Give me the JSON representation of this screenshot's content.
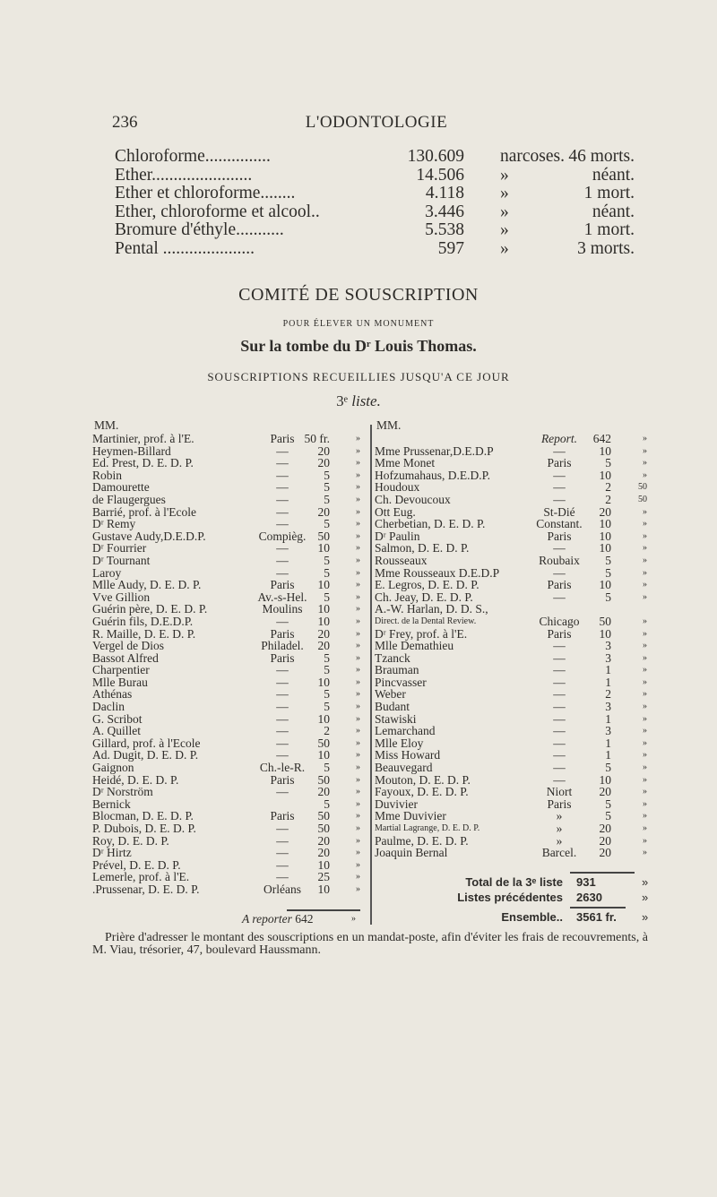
{
  "header": {
    "page_number": "236",
    "running_title": "L'ODONTOLOGIE"
  },
  "stats": [
    {
      "name": "Chloroforme...............",
      "count": "130.609",
      "sep": "narcoses.",
      "result": "46 morts."
    },
    {
      "name": "Ether.......................",
      "count": "14.506",
      "sep": "»",
      "result": "néant."
    },
    {
      "name": "Ether et chloroforme........",
      "count": "4.118",
      "sep": "»",
      "result": "1 mort."
    },
    {
      "name": "Ether, chloroforme et alcool..",
      "count": "3.446",
      "sep": "»",
      "result": "néant."
    },
    {
      "name": "Bromure d'éthyle...........",
      "count": "5.538",
      "sep": "»",
      "result": "1 mort."
    },
    {
      "name": "Pental .....................",
      "count": "597",
      "sep": "»",
      "result": "3 morts."
    }
  ],
  "committee": {
    "title": "COMITÉ DE SOUSCRIPTION",
    "subtitle": "POUR ÉLEVER UN MONUMENT",
    "dedication": "Sur la tombe du Dʳ Louis Thomas.",
    "collected": "SOUSCRIPTIONS RECUEILLIES JUSQU'A CE JOUR",
    "list_number": "3ᵉ",
    "list_label": "liste."
  },
  "left_column": {
    "header": "MM.",
    "rows": [
      [
        "Martinier, prof. à l'E.",
        "Paris",
        "50 fr.",
        "»"
      ],
      [
        "Heymen-Billard",
        "—",
        "20",
        "»"
      ],
      [
        "Ed. Prest, D. E. D. P.",
        "—",
        "20",
        "»"
      ],
      [
        "Robin",
        "—",
        "5",
        "»"
      ],
      [
        "Damourette",
        "—",
        "5",
        "»"
      ],
      [
        "de Flaugergues",
        "—",
        "5",
        "»"
      ],
      [
        "Barrié, prof. à l'Ecole",
        "—",
        "20",
        "»"
      ],
      [
        "Dʳ Remy",
        "—",
        "5",
        "»"
      ],
      [
        "Gustave Audy,D.E.D.P.",
        "Compièg.",
        "50",
        "»"
      ],
      [
        "Dʳ Fourrier",
        "—",
        "10",
        "»"
      ],
      [
        "Dʳ Tournant",
        "—",
        "5",
        "»"
      ],
      [
        "Laroy",
        "—",
        "5",
        "»"
      ],
      [
        "Mlle Audy, D. E. D. P.",
        "Paris",
        "10",
        "»"
      ],
      [
        "Vve Gillion",
        "Av.-s-Hel.",
        "5",
        "»"
      ],
      [
        "Guérin père, D. E. D. P.",
        "Moulins",
        "10",
        "»"
      ],
      [
        "Guérin fils, D.E.D.P.",
        "—",
        "10",
        "»"
      ],
      [
        "R. Maille, D. E. D. P.",
        "Paris",
        "20",
        "»"
      ],
      [
        "Vergel de Dios",
        "Philadel.",
        "20",
        "»"
      ],
      [
        "Bassot Alfred",
        "Paris",
        "5",
        "»"
      ],
      [
        "Charpentier",
        "—",
        "5",
        "»"
      ],
      [
        "Mlle Burau",
        "—",
        "10",
        "»"
      ],
      [
        "Athénas",
        "—",
        "5",
        "»"
      ],
      [
        "Daclin",
        "—",
        "5",
        "»"
      ],
      [
        "G. Scribot",
        "—",
        "10",
        "»"
      ],
      [
        "A. Quillet",
        "—",
        "2",
        "»"
      ],
      [
        "Gillard, prof. à l'Ecole",
        "—",
        "50",
        "»"
      ],
      [
        "Ad. Dugit, D. E. D. P.",
        "—",
        "10",
        "»"
      ],
      [
        "Gaignon",
        "Ch.-le-R.",
        "5",
        "»"
      ],
      [
        "Heidé, D. E. D. P.",
        "Paris",
        "50",
        "»"
      ],
      [
        "Dʳ Norström",
        "—",
        "20",
        "»"
      ],
      [
        "Bernick",
        "",
        "5",
        "»"
      ],
      [
        "Blocman, D. E. D. P.",
        "Paris",
        "50",
        "»"
      ],
      [
        "P. Dubois, D. E. D. P.",
        "—",
        "50",
        "»"
      ],
      [
        "Roy, D. E. D. P.",
        "—",
        "20",
        "»"
      ],
      [
        "Dʳ Hirtz",
        "—",
        "20",
        "»"
      ],
      [
        "Prével, D. E. D. P.",
        "—",
        "10",
        "»"
      ],
      [
        "Lemerle, prof. à l'E.",
        "—",
        "25",
        "»"
      ],
      [
        ".Prussenar, D. E. D. P.",
        "Orléans",
        "10",
        "»"
      ]
    ],
    "carry_label": "A reporter",
    "carry_value": "642",
    "carry_cents": "»"
  },
  "right_column": {
    "header": "MM.",
    "rows": [
      [
        "",
        "Report.",
        "642",
        "»"
      ],
      [
        "Mme Prussenar,D.E.D.P",
        "—",
        "10",
        "»"
      ],
      [
        "Mme Monet",
        "Paris",
        "5",
        "»"
      ],
      [
        "Hofzumahaus, D.E.D.P.",
        "—",
        "10",
        "»"
      ],
      [
        "Houdoux",
        "—",
        "2",
        "50"
      ],
      [
        "Ch. Devoucoux",
        "—",
        "2",
        "50"
      ],
      [
        "Ott Eug.",
        "St-Dié",
        "20",
        "»"
      ],
      [
        "Cherbetian, D. E. D. P.",
        "Constant.",
        "10",
        "»"
      ],
      [
        "Dʳ Paulin",
        "Paris",
        "10",
        "»"
      ],
      [
        "Salmon, D. E. D. P.",
        "—",
        "10",
        "»"
      ],
      [
        "Rousseaux",
        "Roubaix",
        "5",
        "»"
      ],
      [
        "Mme Rousseaux D.E.D.P",
        "—",
        "5",
        "»"
      ],
      [
        "E. Legros, D. E. D. P.",
        "Paris",
        "10",
        "»"
      ],
      [
        "Ch. Jeay, D. E. D. P.",
        "—",
        "5",
        "»"
      ],
      [
        "A.-W. Harlan, D. D. S.,",
        "",
        "",
        ""
      ],
      [
        "Direct. de la Dental Review.",
        "Chicago",
        "50",
        "»"
      ],
      [
        "Dʳ Frey, prof. à l'E.",
        "Paris",
        "10",
        "»"
      ],
      [
        "Mlle Demathieu",
        "—",
        "3",
        "»"
      ],
      [
        "Tzanck",
        "—",
        "3",
        "»"
      ],
      [
        "Brauman",
        "—",
        "1",
        "»"
      ],
      [
        "Pincvasser",
        "—",
        "1",
        "»"
      ],
      [
        "Weber",
        "—",
        "2",
        "»"
      ],
      [
        "Budant",
        "—",
        "3",
        "»"
      ],
      [
        "Stawiski",
        "—",
        "1",
        "»"
      ],
      [
        "Lemarchand",
        "—",
        "3",
        "»"
      ],
      [
        "Mlle Eloy",
        "—",
        "1",
        "»"
      ],
      [
        "Miss Howard",
        "—",
        "1",
        "»"
      ],
      [
        "Beauvegard",
        "—",
        "5",
        "»"
      ],
      [
        "Mouton, D. E. D. P.",
        "—",
        "10",
        "»"
      ],
      [
        "Fayoux, D. E. D. P.",
        "Niort",
        "20",
        "»"
      ],
      [
        "Duvivier",
        "Paris",
        "5",
        "»"
      ],
      [
        "Mme Duvivier",
        "»",
        "5",
        "»"
      ],
      [
        "Martial Lagrange, D. E. D. P.",
        "»",
        "20",
        "»"
      ],
      [
        "Paulme, D. E. D. P.",
        "»",
        "20",
        "»"
      ],
      [
        "Joaquin Bernal",
        "Barcel.",
        "20",
        "»"
      ]
    ],
    "totals": {
      "list_total_label": "Total de la 3ᵉ liste",
      "list_total": "931",
      "list_total_cents": "»",
      "previous_label": "Listes précédentes",
      "previous": "2630",
      "previous_cents": "»",
      "grand_label": "Ensemble..",
      "grand": "3561 fr.",
      "grand_cents": "»"
    }
  },
  "footer": "Prière d'adresser le montant des souscriptions en un mandat-poste, afin d'éviter les frais de recouvrements, à M. Viau, trésorier, 47, boulevard Haussmann."
}
